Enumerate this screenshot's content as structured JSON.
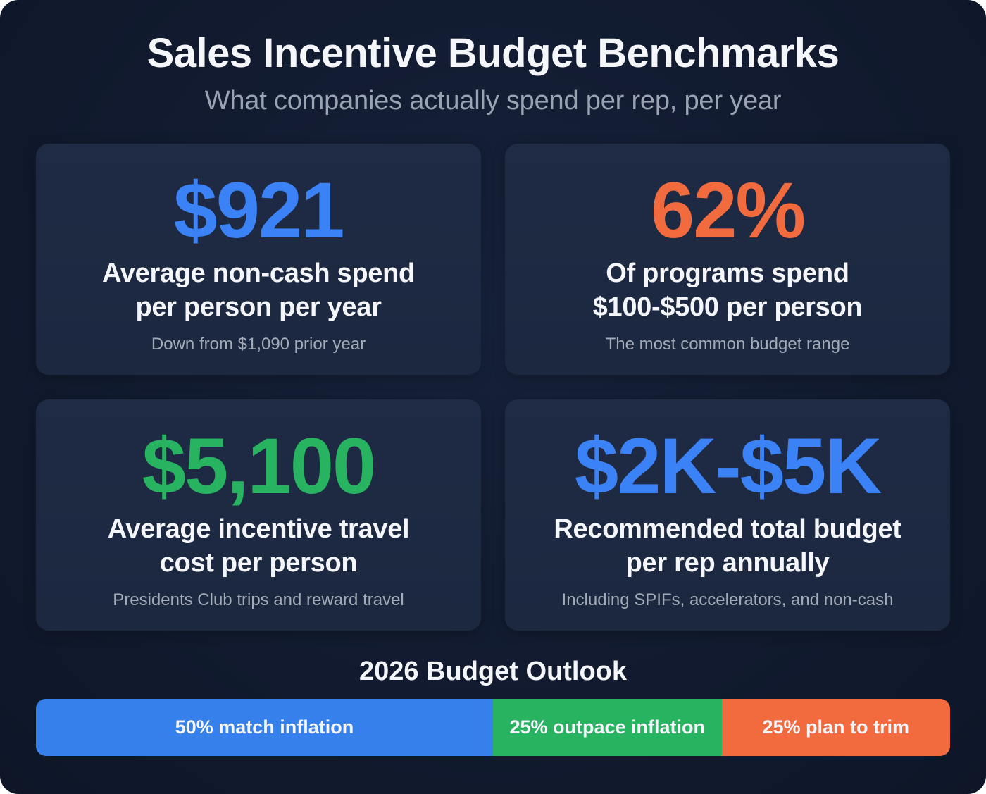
{
  "header": {
    "title": "Sales Incentive Budget Benchmarks",
    "subtitle": "What companies actually spend per rep, per year"
  },
  "cards": [
    {
      "value": "$921",
      "value_color": "#3b82f6",
      "label_line1": "Average non-cash spend",
      "label_line2": "per person per year",
      "note": "Down from $1,090 prior year"
    },
    {
      "value": "62%",
      "value_color": "#f26b3e",
      "label_line1": "Of programs spend",
      "label_line2": "$100-$500 per person",
      "note": "The most common budget range"
    },
    {
      "value": "$5,100",
      "value_color": "#27b35f",
      "label_line1": "Average incentive travel",
      "label_line2": "cost per person",
      "note": "Presidents Club trips and reward travel"
    },
    {
      "value": "$2K-$5K",
      "value_color": "#3b82f6",
      "label_line1": "Recommended total budget",
      "label_line2": "per rep annually",
      "note": "Including SPIFs, accelerators, and non-cash"
    }
  ],
  "outlook": {
    "title": "2026 Budget Outlook",
    "segments": [
      {
        "label": "50% match inflation",
        "percent": 50,
        "color": "#3580eb"
      },
      {
        "label": "25% outpace inflation",
        "percent": 25,
        "color": "#27b35f"
      },
      {
        "label": "25% plan to trim",
        "percent": 25,
        "color": "#f26b3e"
      }
    ]
  },
  "chart_data": {
    "type": "bar",
    "title": "2026 Budget Outlook",
    "orientation": "horizontal-stacked-100%",
    "categories": [
      "2026 Budget Outlook"
    ],
    "series": [
      {
        "name": "match inflation",
        "values": [
          50
        ],
        "color": "#3580eb"
      },
      {
        "name": "outpace inflation",
        "values": [
          25
        ],
        "color": "#27b35f"
      },
      {
        "name": "plan to trim",
        "values": [
          25
        ],
        "color": "#f26b3e"
      }
    ],
    "xlabel": "",
    "ylabel": "",
    "xlim": [
      0,
      100
    ],
    "grid": false,
    "legend": "inline labels",
    "kpis": [
      {
        "value": "$921",
        "label": "Average non-cash spend per person per year",
        "note": "Down from $1,090 prior year"
      },
      {
        "value": "62%",
        "label": "Of programs spend $100-$500 per person",
        "note": "The most common budget range"
      },
      {
        "value": "$5,100",
        "label": "Average incentive travel cost per person",
        "note": "Presidents Club trips and reward travel"
      },
      {
        "value": "$2K-$5K",
        "label": "Recommended total budget per rep annually",
        "note": "Including SPIFs, accelerators, and non-cash"
      }
    ]
  }
}
